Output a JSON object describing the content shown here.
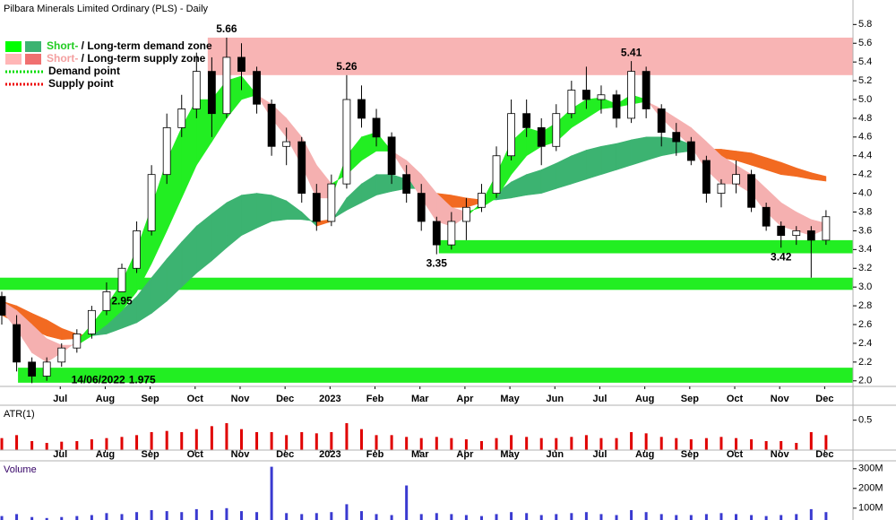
{
  "chart_data": [
    {
      "type": "candlestick",
      "title": "Pilbara Minerals Limited Ordinary (PLS) - Daily",
      "legend": [
        {
          "pieces": [
            "Short-",
            " / Long-term demand zone"
          ],
          "piece_colors": [
            "#22cc22",
            "#000000"
          ],
          "swatches": [
            "#00ff00",
            "#3cb371"
          ]
        },
        {
          "pieces": [
            "Short-",
            " / Long-term supply zone"
          ],
          "piece_colors": [
            "#f4a0a0",
            "#000000"
          ],
          "swatches": [
            "#ffb6b6",
            "#f07070"
          ]
        },
        {
          "pieces": [
            "Demand point"
          ],
          "piece_colors": [
            "#000000"
          ],
          "line_color": "#00dd00"
        },
        {
          "pieces": [
            "Supply point"
          ],
          "piece_colors": [
            "#000000"
          ],
          "line_color": "#ee0000"
        }
      ],
      "x": [
        -0.3,
        0.03,
        0.37,
        0.7,
        1.03,
        1.37,
        1.7,
        2.03,
        2.37,
        2.7,
        3.03,
        3.37,
        3.7,
        4.03,
        4.37,
        4.7,
        5.03,
        5.37,
        5.7,
        6.03,
        6.37,
        6.7,
        7.03,
        7.37,
        7.7,
        8.03,
        8.37,
        8.7,
        9.03,
        9.37,
        9.7,
        10.03,
        10.37,
        10.7,
        11.03,
        11.37,
        11.7,
        12.03,
        12.37,
        12.7,
        13.03,
        13.37,
        13.7,
        14.03,
        14.37,
        14.7,
        15.03,
        15.37,
        15.7,
        16.03,
        16.37,
        16.7,
        17.03,
        17.37,
        17.7,
        18.03
      ],
      "open": [
        2.9,
        2.6,
        2.2,
        2.05,
        2.2,
        2.35,
        2.5,
        2.75,
        2.95,
        3.2,
        3.6,
        4.2,
        4.7,
        4.9,
        5.3,
        4.85,
        5.45,
        5.3,
        4.95,
        4.5,
        4.55,
        4.0,
        3.7,
        4.1,
        5.0,
        4.8,
        4.6,
        4.2,
        4.0,
        3.7,
        3.45,
        3.7,
        3.85,
        4.0,
        4.4,
        4.85,
        4.7,
        4.5,
        4.85,
        5.1,
        5.0,
        5.05,
        4.8,
        5.3,
        4.9,
        4.65,
        4.55,
        4.35,
        4.0,
        4.1,
        4.2,
        3.85,
        3.65,
        3.55,
        3.6,
        3.5
      ],
      "high": [
        2.95,
        2.7,
        2.25,
        2.25,
        2.4,
        2.55,
        2.8,
        3.05,
        3.25,
        3.7,
        4.3,
        4.85,
        5.05,
        5.5,
        5.45,
        5.66,
        5.6,
        5.35,
        5.0,
        4.7,
        4.6,
        4.1,
        4.2,
        5.26,
        5.15,
        4.9,
        4.65,
        4.3,
        4.1,
        3.75,
        3.8,
        3.95,
        4.1,
        4.5,
        5.0,
        5.0,
        4.8,
        4.95,
        5.2,
        5.35,
        5.15,
        5.1,
        5.41,
        5.35,
        4.95,
        4.75,
        4.6,
        4.4,
        4.15,
        4.35,
        4.25,
        3.9,
        3.7,
        3.65,
        3.65,
        3.82
      ],
      "low": [
        2.6,
        2.1,
        1.975,
        2.0,
        2.15,
        2.3,
        2.45,
        2.7,
        2.95,
        3.15,
        3.55,
        4.1,
        4.6,
        4.8,
        4.6,
        4.8,
        5.1,
        4.85,
        4.4,
        4.3,
        3.9,
        3.6,
        3.65,
        4.05,
        4.7,
        4.5,
        4.1,
        3.9,
        3.6,
        3.35,
        3.4,
        3.5,
        3.8,
        3.95,
        4.35,
        4.6,
        4.3,
        4.45,
        4.8,
        4.9,
        4.85,
        4.7,
        4.75,
        4.8,
        4.5,
        4.4,
        4.3,
        3.9,
        3.85,
        4.0,
        3.8,
        3.6,
        3.42,
        3.45,
        3.1,
        3.45
      ],
      "close": [
        2.7,
        2.2,
        2.05,
        2.2,
        2.35,
        2.5,
        2.75,
        2.95,
        3.2,
        3.6,
        4.2,
        4.7,
        4.9,
        5.3,
        4.85,
        5.45,
        5.3,
        4.95,
        4.5,
        4.55,
        4.0,
        3.7,
        4.1,
        5.0,
        4.8,
        4.6,
        4.2,
        4.0,
        3.7,
        3.45,
        3.7,
        3.85,
        4.0,
        4.4,
        4.85,
        4.7,
        4.5,
        4.85,
        5.1,
        5.0,
        5.05,
        4.8,
        5.3,
        4.9,
        4.65,
        4.55,
        4.35,
        4.0,
        4.1,
        4.2,
        3.85,
        3.65,
        3.55,
        3.6,
        3.5,
        3.75
      ],
      "ribbons": [
        {
          "up_color": "#3cb371",
          "down_color": "#f26a21",
          "fast": [
            2.7,
            2.62,
            2.55,
            2.48,
            2.44,
            2.45,
            2.52,
            2.62,
            2.75,
            2.9,
            3.1,
            3.3,
            3.48,
            3.65,
            3.78,
            3.9,
            3.98,
            4.0,
            3.98,
            3.92,
            3.8,
            3.65,
            3.7,
            3.95,
            4.1,
            4.2,
            4.2,
            4.15,
            4.05,
            3.9,
            3.85,
            3.85,
            3.9,
            4.0,
            4.12,
            4.2,
            4.25,
            4.32,
            4.4,
            4.46,
            4.5,
            4.53,
            4.57,
            4.6,
            4.6,
            4.58,
            4.52,
            4.45,
            4.38,
            4.35,
            4.3,
            4.25,
            4.2,
            4.18,
            4.15,
            4.13
          ],
          "slow": [
            2.85,
            2.8,
            2.72,
            2.65,
            2.56,
            2.5,
            2.48,
            2.5,
            2.56,
            2.62,
            2.72,
            2.85,
            3.0,
            3.15,
            3.28,
            3.42,
            3.55,
            3.63,
            3.7,
            3.72,
            3.72,
            3.7,
            3.72,
            3.82,
            3.9,
            3.98,
            4.02,
            4.05,
            4.05,
            4.0,
            3.98,
            3.95,
            3.93,
            3.93,
            3.95,
            3.98,
            4.0,
            4.05,
            4.1,
            4.15,
            4.2,
            4.25,
            4.3,
            4.35,
            4.4,
            4.43,
            4.45,
            4.47,
            4.47,
            4.45,
            4.43,
            4.38,
            4.33,
            4.27,
            4.22,
            4.18
          ]
        },
        {
          "up_color": "#22ee22",
          "down_color": "#f5b0b0",
          "fast": [
            2.75,
            2.55,
            2.3,
            2.2,
            2.3,
            2.42,
            2.6,
            2.8,
            3.05,
            3.4,
            3.85,
            4.35,
            4.7,
            5.0,
            5.0,
            5.2,
            5.25,
            5.05,
            4.8,
            4.6,
            4.3,
            3.95,
            3.95,
            4.4,
            4.6,
            4.65,
            4.45,
            4.2,
            3.95,
            3.7,
            3.65,
            3.75,
            3.9,
            4.2,
            4.55,
            4.7,
            4.65,
            4.75,
            4.9,
            5.0,
            5.02,
            4.95,
            5.05,
            5.0,
            4.8,
            4.65,
            4.5,
            4.25,
            4.1,
            4.1,
            4.0,
            3.8,
            3.65,
            3.6,
            3.55,
            3.62
          ],
          "slow": [
            2.85,
            2.75,
            2.6,
            2.45,
            2.38,
            2.38,
            2.48,
            2.6,
            2.75,
            2.95,
            3.25,
            3.6,
            3.95,
            4.3,
            4.55,
            4.8,
            5.0,
            5.05,
            4.95,
            4.8,
            4.6,
            4.3,
            4.1,
            4.2,
            4.35,
            4.45,
            4.45,
            4.35,
            4.2,
            4.0,
            3.85,
            3.8,
            3.85,
            3.95,
            4.2,
            4.4,
            4.5,
            4.55,
            4.7,
            4.8,
            4.9,
            4.92,
            4.95,
            4.98,
            4.9,
            4.8,
            4.7,
            4.55,
            4.4,
            4.3,
            4.2,
            4.05,
            3.9,
            3.8,
            3.72,
            3.68
          ]
        }
      ],
      "zones": [
        {
          "low": 5.26,
          "high": 5.66,
          "x_start": 4.28,
          "color": "#f8b4b4"
        },
        {
          "low": 3.36,
          "high": 3.5,
          "x_start": 9.42,
          "color": "#22ee22"
        },
        {
          "low": 2.97,
          "high": 3.1,
          "x_start": -0.34,
          "color": "#22ee22"
        },
        {
          "low": 1.98,
          "high": 2.14,
          "x_start": 0.06,
          "color": "#22ee22"
        }
      ],
      "annotations": [
        {
          "x": 4.7,
          "value": 5.66,
          "position": "above"
        },
        {
          "x": 7.37,
          "value": 5.26,
          "position": "above"
        },
        {
          "x": 13.7,
          "value": 5.41,
          "position": "above"
        },
        {
          "x": 9.37,
          "value": 3.35,
          "position": "below"
        },
        {
          "x": 17.03,
          "value": 3.42,
          "position": "below"
        },
        {
          "x": 2.37,
          "value": 2.95,
          "position": "below"
        },
        {
          "x": 0.37,
          "date": "14/06/2022",
          "value": 1.975,
          "position": "right"
        }
      ],
      "xlim": [
        -0.34,
        18.63
      ],
      "xticks": [
        {
          "value": 1,
          "label": "Jul"
        },
        {
          "value": 2,
          "label": "Aug"
        },
        {
          "value": 3,
          "label": "Sep"
        },
        {
          "value": 4,
          "label": "Oct"
        },
        {
          "value": 5,
          "label": "Nov"
        },
        {
          "value": 6,
          "label": "Dec"
        },
        {
          "value": 7,
          "label": "2023"
        },
        {
          "value": 8,
          "label": "Feb"
        },
        {
          "value": 9,
          "label": "Mar"
        },
        {
          "value": 10,
          "label": "Apr"
        },
        {
          "value": 11,
          "label": "May"
        },
        {
          "value": 12,
          "label": "Jun"
        },
        {
          "value": 13,
          "label": "Jul"
        },
        {
          "value": 14,
          "label": "Aug"
        },
        {
          "value": 15,
          "label": "Sep"
        },
        {
          "value": 16,
          "label": "Oct"
        },
        {
          "value": 17,
          "label": "Nov"
        },
        {
          "value": 18,
          "label": "Dec"
        }
      ],
      "ylim": [
        1.95,
        5.87
      ],
      "yticks": [
        {
          "value": 2,
          "label": "2.0"
        },
        2.2,
        2.4,
        2.6,
        2.8,
        {
          "value": 3,
          "label": "3.0"
        },
        3.2,
        3.4,
        3.6,
        3.8,
        {
          "value": 4,
          "label": "4.0"
        },
        4.2,
        4.4,
        4.6,
        4.8,
        {
          "value": 5,
          "label": "5.0"
        },
        5.2,
        5.4,
        5.6,
        5.8
      ]
    },
    {
      "type": "bar",
      "title": "ATR(1)",
      "color": "#e00000",
      "values": [
        0.2,
        0.25,
        0.15,
        0.12,
        0.14,
        0.15,
        0.18,
        0.2,
        0.22,
        0.25,
        0.3,
        0.32,
        0.3,
        0.35,
        0.4,
        0.45,
        0.35,
        0.3,
        0.3,
        0.25,
        0.3,
        0.28,
        0.3,
        0.45,
        0.35,
        0.25,
        0.25,
        0.22,
        0.2,
        0.22,
        0.2,
        0.18,
        0.15,
        0.2,
        0.25,
        0.22,
        0.2,
        0.2,
        0.22,
        0.25,
        0.2,
        0.2,
        0.3,
        0.28,
        0.22,
        0.2,
        0.18,
        0.2,
        0.22,
        0.2,
        0.18,
        0.15,
        0.15,
        0.12,
        0.3,
        0.25
      ],
      "ylim": [
        0,
        0.75
      ],
      "yticks": [
        0.5
      ]
    },
    {
      "type": "bar",
      "title": "Volume",
      "color": "#3a3ad0",
      "values": [
        60000000,
        70000000,
        55000000,
        50000000,
        55000000,
        60000000,
        65000000,
        75000000,
        70000000,
        80000000,
        90000000,
        85000000,
        80000000,
        95000000,
        90000000,
        100000000,
        85000000,
        80000000,
        310000000,
        75000000,
        70000000,
        75000000,
        80000000,
        120000000,
        85000000,
        70000000,
        65000000,
        215000000,
        70000000,
        75000000,
        70000000,
        65000000,
        60000000,
        70000000,
        80000000,
        75000000,
        65000000,
        70000000,
        75000000,
        80000000,
        70000000,
        65000000,
        90000000,
        80000000,
        70000000,
        65000000,
        65000000,
        70000000,
        75000000,
        70000000,
        65000000,
        60000000,
        65000000,
        70000000,
        95000000,
        80000000
      ],
      "ylim": [
        40000000,
        340000000
      ],
      "yticks": [
        {
          "value": 100000000,
          "label": "100M"
        },
        {
          "value": 200000000,
          "label": "200M"
        },
        {
          "value": 300000000,
          "label": "300M"
        }
      ]
    }
  ]
}
